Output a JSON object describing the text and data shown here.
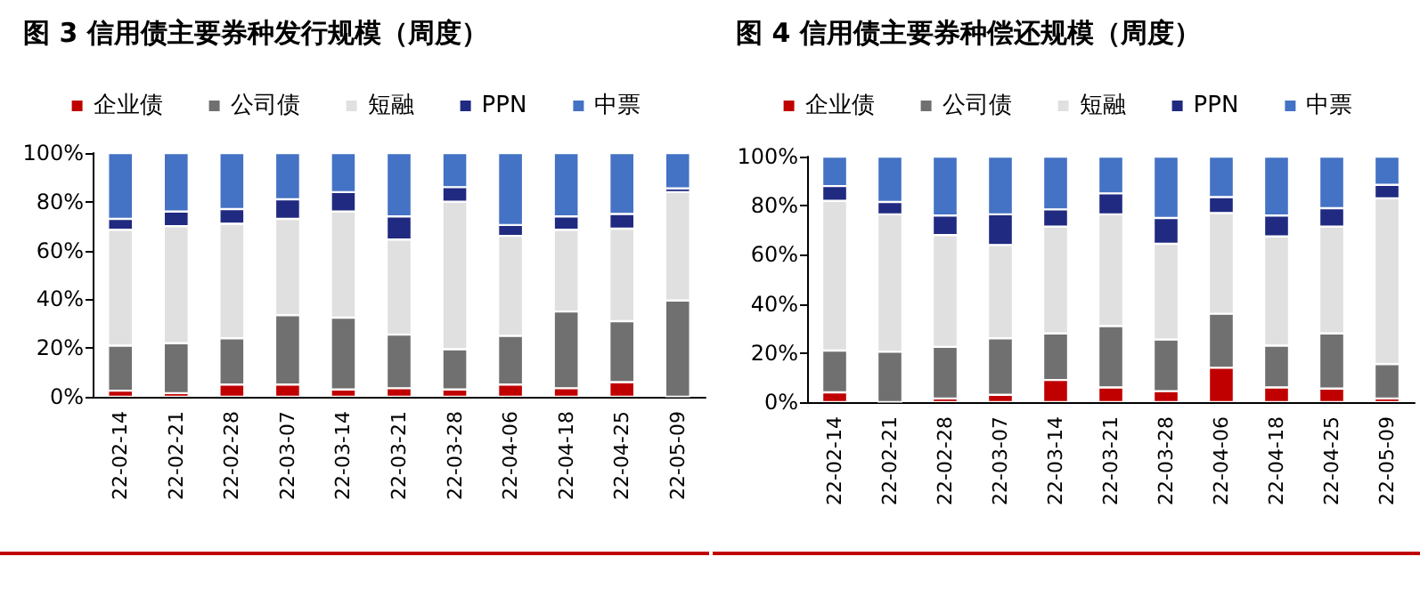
{
  "chart_data": [
    {
      "type": "bar",
      "title": "图 3 信用债主要券种发行规模（周度）",
      "stacked": true,
      "legend": "top",
      "grid": false,
      "categories": [
        "22-02-14",
        "22-02-21",
        "22-02-28",
        "22-03-07",
        "22-03-14",
        "22-03-21",
        "22-03-28",
        "22-04-06",
        "22-04-18",
        "22-04-25",
        "22-05-09"
      ],
      "ylim": [
        0,
        100
      ],
      "yticks": [
        {
          "value": 0,
          "label": "0%"
        },
        {
          "value": 20,
          "label": "20%"
        },
        {
          "value": 40,
          "label": "40%"
        },
        {
          "value": 60,
          "label": "60%"
        },
        {
          "value": 80,
          "label": "80%"
        },
        {
          "value": 100,
          "label": "100%"
        }
      ],
      "series": [
        {
          "name": "企业债",
          "color": "#c00000",
          "values": [
            2.5,
            1.5,
            5,
            5,
            3,
            3.5,
            3,
            5,
            3.5,
            6,
            0
          ]
        },
        {
          "name": "公司债",
          "color": "#707070",
          "values": [
            18.5,
            20.5,
            19,
            28.5,
            29.5,
            22,
            16.5,
            20,
            31.5,
            25,
            39.5
          ]
        },
        {
          "name": "短融",
          "color": "#e0e0e0",
          "values": [
            47.5,
            48,
            47,
            39.5,
            43.5,
            39,
            60.5,
            41,
            33.5,
            38,
            44.5
          ]
        },
        {
          "name": "PPN",
          "color": "#202a80",
          "values": [
            4.5,
            6,
            6,
            8,
            8,
            9.5,
            6,
            4.5,
            5.5,
            6,
            1.5
          ]
        },
        {
          "name": "中票",
          "color": "#4472c4",
          "values": [
            27,
            24,
            23,
            19,
            16,
            26,
            14,
            29.5,
            26,
            25,
            14.5
          ]
        }
      ]
    },
    {
      "type": "bar",
      "title": "图 4 信用债主要券种偿还规模（周度）",
      "stacked": true,
      "legend": "top",
      "grid": false,
      "categories": [
        "22-02-14",
        "22-02-21",
        "22-02-28",
        "22-03-07",
        "22-03-14",
        "22-03-21",
        "22-03-28",
        "22-04-06",
        "22-04-18",
        "22-04-25",
        "22-05-09"
      ],
      "ylim": [
        0,
        100
      ],
      "yticks": [
        {
          "value": 0,
          "label": "0%"
        },
        {
          "value": 20,
          "label": "20%"
        },
        {
          "value": 40,
          "label": "40%"
        },
        {
          "value": 60,
          "label": "60%"
        },
        {
          "value": 80,
          "label": "80%"
        },
        {
          "value": 100,
          "label": "100%"
        }
      ],
      "series": [
        {
          "name": "企业债",
          "color": "#c00000",
          "values": [
            4,
            0,
            1.5,
            3,
            9,
            6,
            4.5,
            14,
            6,
            5.5,
            1.5
          ]
        },
        {
          "name": "公司债",
          "color": "#707070",
          "values": [
            17,
            20.5,
            21,
            23,
            19,
            25,
            21,
            22,
            17,
            22.5,
            14
          ]
        },
        {
          "name": "短融",
          "color": "#e0e0e0",
          "values": [
            61,
            56,
            45.5,
            38,
            43.5,
            45.5,
            39,
            41,
            44.5,
            43.5,
            67.5
          ]
        },
        {
          "name": "PPN",
          "color": "#202a80",
          "values": [
            6,
            5,
            8,
            12.5,
            7,
            8.5,
            10.5,
            6.5,
            8.5,
            7.5,
            5.5
          ]
        },
        {
          "name": "中票",
          "color": "#4472c4",
          "values": [
            12,
            18.5,
            24,
            23.5,
            21.5,
            15,
            25,
            16.5,
            24,
            21,
            11.5
          ]
        }
      ]
    }
  ]
}
